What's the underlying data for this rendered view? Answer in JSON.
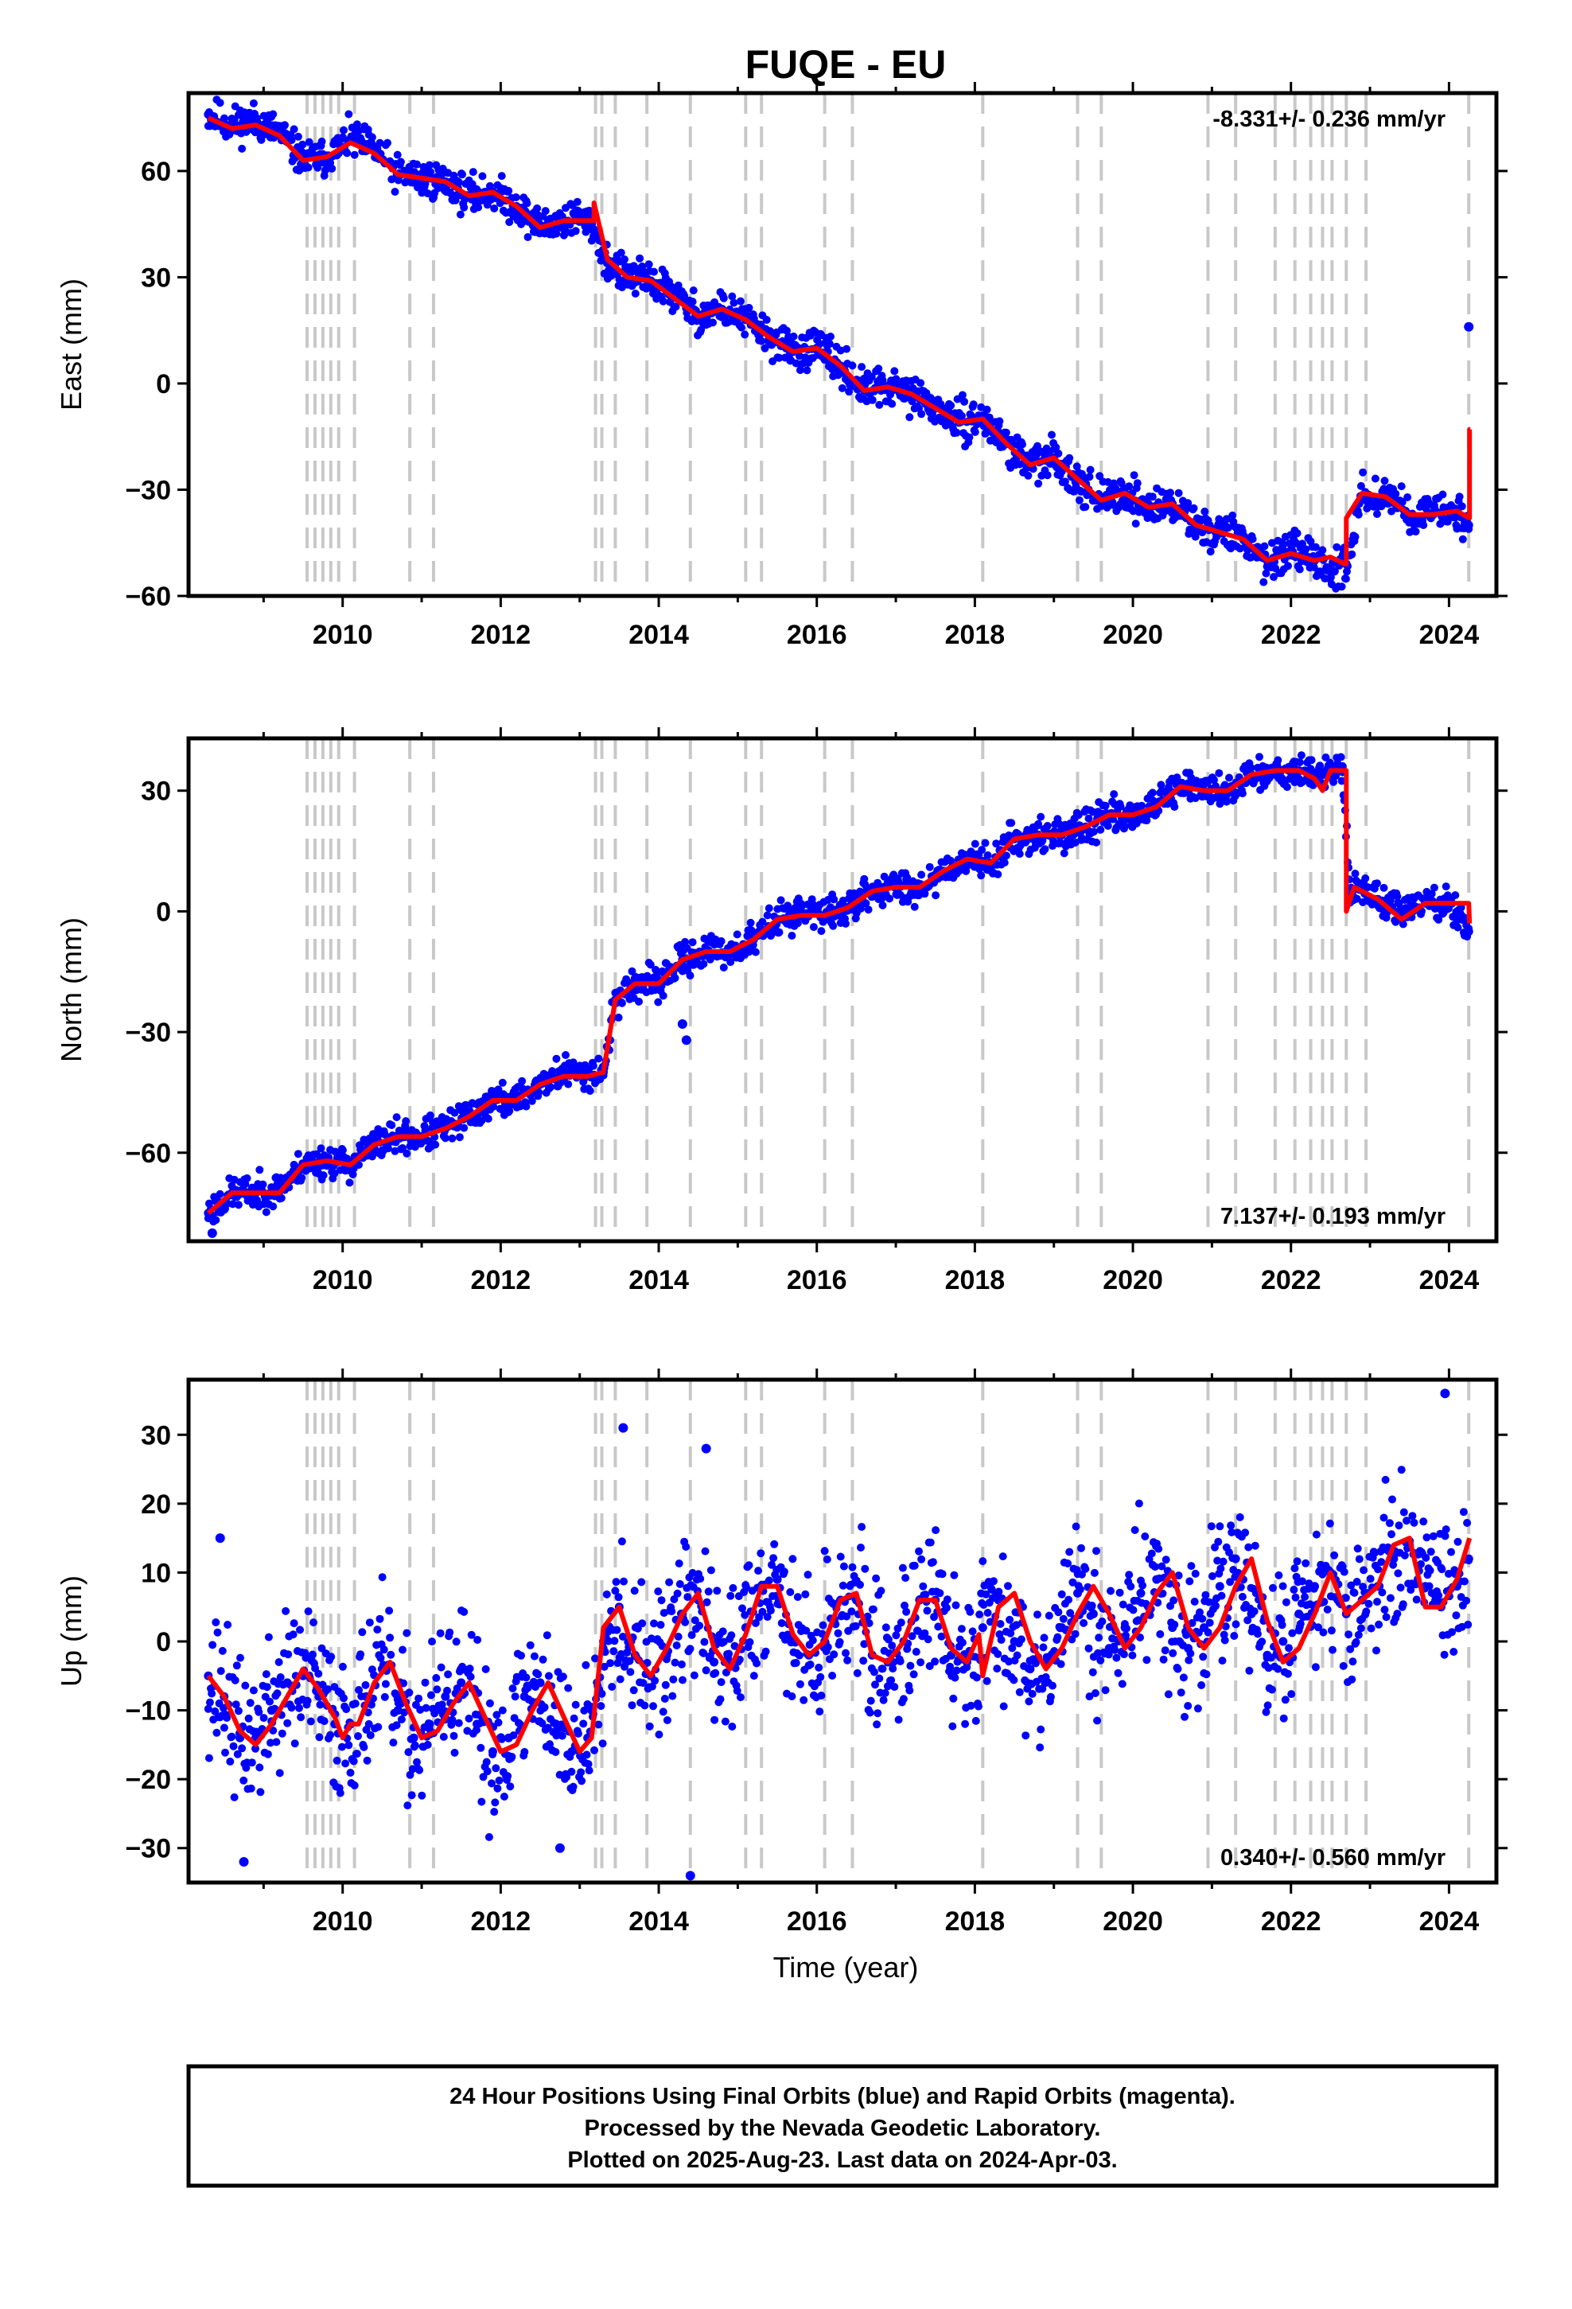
{
  "figure": {
    "title": "FUQE - EU",
    "caption": [
      "24 Hour Positions Using Final Orbits (blue) and Rapid Orbits (magenta).",
      "Processed by the Nevada Geodetic Laboratory.",
      "Plotted on 2025-Aug-23. Last data on 2024-Apr-03."
    ],
    "x_label": "Time (year)",
    "colors": {
      "final_orbits": "#0000ff",
      "model_fit": "#ff0000",
      "event_lines": "#c8c8c8",
      "frame": "#000000"
    }
  },
  "chart_data": [
    {
      "type": "scatter",
      "component": "East",
      "ylabel": "East (mm)",
      "xlim": [
        2008.05,
        2024.6
      ],
      "ylim": [
        -60,
        82
      ],
      "x_ticks": [
        2010,
        2012,
        2014,
        2016,
        2018,
        2020,
        2022,
        2024
      ],
      "y_ticks": [
        -60,
        -30,
        0,
        30,
        60
      ],
      "rate_label": "-8.331+/- 0.236 mm/yr",
      "rate_position": "top-right",
      "series": [
        {
          "name": "Final Orbits",
          "color": "#0000ff",
          "x": [
            2008.3,
            2008.6,
            2008.9,
            2009.2,
            2009.5,
            2009.8,
            2010.1,
            2010.4,
            2010.7,
            2011.0,
            2011.3,
            2011.6,
            2011.9,
            2012.2,
            2012.5,
            2012.8,
            2013.0,
            2013.15,
            2013.35,
            2013.6,
            2013.9,
            2014.2,
            2014.5,
            2014.8,
            2015.1,
            2015.4,
            2015.7,
            2016.0,
            2016.3,
            2016.6,
            2016.9,
            2017.2,
            2017.5,
            2017.8,
            2018.1,
            2018.4,
            2018.7,
            2019.0,
            2019.3,
            2019.6,
            2019.9,
            2020.2,
            2020.5,
            2020.8,
            2021.1,
            2021.4,
            2021.7,
            2022.0,
            2022.3,
            2022.55,
            2022.7,
            2022.9,
            2023.2,
            2023.5,
            2023.8,
            2024.1,
            2024.25
          ],
          "y": [
            76,
            73,
            74,
            71,
            63,
            64,
            69,
            66,
            59,
            58,
            57,
            53,
            54,
            50,
            44,
            46,
            47,
            45,
            34,
            30,
            29,
            25,
            19,
            21,
            18,
            13,
            9,
            10,
            5,
            -2,
            -1,
            -3,
            -7,
            -11,
            -10,
            -17,
            -23,
            -21,
            -27,
            -33,
            -31,
            -35,
            -34,
            -40,
            -42,
            -44,
            -50,
            -48,
            -50,
            -53,
            -51,
            -32,
            -31,
            -37,
            -37,
            -36,
            -40
          ]
        }
      ],
      "outliers": [
        {
          "x": 2024.25,
          "y": 16
        }
      ],
      "fit": {
        "name": "Model",
        "color": "#ff0000",
        "x": [
          2008.3,
          2008.6,
          2008.9,
          2009.2,
          2009.5,
          2009.8,
          2010.1,
          2010.4,
          2010.7,
          2011.0,
          2011.3,
          2011.6,
          2011.9,
          2012.2,
          2012.5,
          2012.8,
          2013.1,
          2013.18,
          2013.18,
          2013.35,
          2013.6,
          2013.9,
          2014.2,
          2014.5,
          2014.8,
          2015.1,
          2015.4,
          2015.7,
          2016.0,
          2016.3,
          2016.6,
          2016.9,
          2017.2,
          2017.5,
          2017.8,
          2018.1,
          2018.4,
          2018.7,
          2019.0,
          2019.3,
          2019.6,
          2019.9,
          2020.2,
          2020.5,
          2020.8,
          2021.1,
          2021.4,
          2021.7,
          2022.0,
          2022.3,
          2022.5,
          2022.68,
          2022.7,
          2022.7,
          2022.9,
          2023.2,
          2023.5,
          2023.8,
          2024.1,
          2024.26,
          2024.26,
          2024.27
        ],
        "y": [
          75,
          72,
          73,
          70,
          63,
          64,
          68,
          65,
          59,
          58,
          57,
          53,
          54,
          50,
          44,
          46,
          46,
          46,
          51,
          35,
          30,
          29,
          24,
          19,
          21,
          18,
          13,
          9,
          10,
          5,
          -2,
          -1,
          -3,
          -7,
          -11,
          -10,
          -17,
          -23,
          -21,
          -27,
          -33,
          -31,
          -35,
          -34,
          -40,
          -42,
          -44,
          -50,
          -48,
          -50,
          -49,
          -51,
          -51,
          -38,
          -31,
          -32,
          -37,
          -37,
          -36,
          -38,
          -13,
          -13
        ]
      }
    },
    {
      "type": "scatter",
      "component": "North",
      "ylabel": "North (mm)",
      "xlim": [
        2008.05,
        2024.6
      ],
      "ylim": [
        -82,
        43
      ],
      "x_ticks": [
        2010,
        2012,
        2014,
        2016,
        2018,
        2020,
        2022,
        2024
      ],
      "y_ticks": [
        -60,
        -30,
        0,
        30
      ],
      "rate_label": "7.137+/- 0.193 mm/yr",
      "rate_position": "bottom-right",
      "series": [
        {
          "name": "Final Orbits",
          "color": "#0000ff",
          "x": [
            2008.3,
            2008.6,
            2008.9,
            2009.2,
            2009.5,
            2009.8,
            2010.1,
            2010.4,
            2010.7,
            2011.0,
            2011.3,
            2011.6,
            2011.9,
            2012.2,
            2012.5,
            2012.8,
            2013.1,
            2013.3,
            2013.45,
            2013.7,
            2014.0,
            2014.3,
            2014.6,
            2014.9,
            2015.2,
            2015.5,
            2015.8,
            2016.1,
            2016.4,
            2016.7,
            2017.0,
            2017.3,
            2017.6,
            2017.9,
            2018.2,
            2018.5,
            2018.8,
            2019.1,
            2019.4,
            2019.7,
            2020.0,
            2020.3,
            2020.6,
            2020.9,
            2021.2,
            2021.5,
            2021.8,
            2022.1,
            2022.4,
            2022.65,
            2022.75,
            2022.9,
            2023.1,
            2023.4,
            2023.7,
            2024.0,
            2024.25
          ],
          "y": [
            -75,
            -70,
            -70,
            -69,
            -63,
            -62,
            -63,
            -58,
            -56,
            -56,
            -54,
            -51,
            -47,
            -47,
            -43,
            -40,
            -40,
            -40,
            -22,
            -18,
            -18,
            -12,
            -10,
            -10,
            -7,
            -2,
            0,
            -1,
            1,
            5,
            6,
            6,
            10,
            13,
            12,
            18,
            19,
            19,
            21,
            24,
            24,
            26,
            31,
            30,
            30,
            34,
            35,
            35,
            34,
            36,
            4,
            6,
            3,
            0,
            2,
            2,
            -5
          ]
        }
      ],
      "outliers": [
        {
          "x": 2008.35,
          "y": -80
        },
        {
          "x": 2014.35,
          "y": -32
        },
        {
          "x": 2014.3,
          "y": -28
        }
      ],
      "fit": {
        "name": "Model",
        "color": "#ff0000",
        "x": [
          2008.3,
          2008.6,
          2008.9,
          2009.2,
          2009.5,
          2009.8,
          2010.1,
          2010.4,
          2010.7,
          2011.0,
          2011.3,
          2011.6,
          2011.9,
          2012.2,
          2012.5,
          2012.8,
          2013.1,
          2013.3,
          2013.45,
          2013.7,
          2014.0,
          2014.3,
          2014.6,
          2014.9,
          2015.2,
          2015.5,
          2015.8,
          2016.1,
          2016.4,
          2016.7,
          2017.0,
          2017.3,
          2017.6,
          2017.9,
          2018.2,
          2018.5,
          2018.8,
          2019.1,
          2019.4,
          2019.7,
          2020.0,
          2020.3,
          2020.6,
          2020.9,
          2021.2,
          2021.5,
          2021.8,
          2022.1,
          2022.3,
          2022.4,
          2022.5,
          2022.68,
          2022.7,
          2022.7,
          2022.8,
          2023.1,
          2023.4,
          2023.7,
          2024.0,
          2024.25,
          2024.26
        ],
        "y": [
          -75,
          -70,
          -70,
          -70,
          -63,
          -62,
          -63,
          -58,
          -56,
          -56,
          -54,
          -51,
          -47,
          -47,
          -43,
          -41,
          -41,
          -40,
          -22,
          -18,
          -18,
          -12,
          -10,
          -10,
          -7,
          -2,
          -1,
          -1,
          1,
          5,
          6,
          6,
          10,
          13,
          12,
          18,
          19,
          19,
          21,
          24,
          24,
          26,
          31,
          30,
          30,
          34,
          35,
          35,
          33,
          30,
          35,
          35,
          35,
          0,
          6,
          3,
          -2,
          2,
          2,
          2,
          -3
        ]
      }
    },
    {
      "type": "scatter",
      "component": "Up",
      "ylabel": "Up (mm)",
      "xlim": [
        2008.05,
        2024.6
      ],
      "ylim": [
        -35,
        38
      ],
      "x_ticks": [
        2010,
        2012,
        2014,
        2016,
        2018,
        2020,
        2022,
        2024
      ],
      "y_ticks": [
        -30,
        -20,
        -10,
        0,
        10,
        20,
        30
      ],
      "rate_label": "0.340+/- 0.560 mm/yr",
      "rate_position": "bottom-right",
      "series": [
        {
          "name": "Final Orbits",
          "color": "#0000ff",
          "x": [
            2008.3,
            2008.5,
            2008.7,
            2008.9,
            2009.1,
            2009.3,
            2009.5,
            2009.7,
            2009.9,
            2010.1,
            2010.3,
            2010.5,
            2010.7,
            2010.9,
            2011.1,
            2011.3,
            2011.5,
            2011.7,
            2011.9,
            2012.1,
            2012.3,
            2012.5,
            2012.7,
            2012.9,
            2013.1,
            2013.3,
            2013.5,
            2013.7,
            2013.9,
            2014.1,
            2014.3,
            2014.5,
            2014.7,
            2014.9,
            2015.1,
            2015.3,
            2015.5,
            2015.7,
            2015.9,
            2016.1,
            2016.3,
            2016.5,
            2016.7,
            2016.9,
            2017.1,
            2017.3,
            2017.5,
            2017.7,
            2017.9,
            2018.1,
            2018.3,
            2018.5,
            2018.7,
            2018.9,
            2019.1,
            2019.3,
            2019.5,
            2019.7,
            2019.9,
            2020.1,
            2020.3,
            2020.5,
            2020.7,
            2020.9,
            2021.1,
            2021.3,
            2021.5,
            2021.7,
            2021.9,
            2022.1,
            2022.3,
            2022.5,
            2022.7,
            2022.9,
            2023.1,
            2023.3,
            2023.5,
            2023.7,
            2023.9,
            2024.1,
            2024.25
          ],
          "y": [
            -5,
            -8,
            -14,
            -14,
            -10,
            -6,
            -5,
            -8,
            -12,
            -12,
            -8,
            -4,
            -10,
            -14,
            -12,
            -8,
            -6,
            -12,
            -16,
            -14,
            -8,
            -6,
            -12,
            -16,
            -14,
            0,
            5,
            -2,
            -5,
            -2,
            4,
            6,
            -3,
            -3,
            2,
            8,
            9,
            0,
            -2,
            0,
            6,
            6,
            -2,
            -3,
            0,
            6,
            6,
            -2,
            -3,
            2,
            6,
            0,
            -4,
            -3,
            2,
            7,
            4,
            -1,
            2,
            7,
            9,
            2,
            -1,
            2,
            8,
            12,
            4,
            -2,
            0,
            4,
            8,
            10,
            4,
            6,
            8,
            12,
            14,
            8,
            5,
            8,
            12
          ]
        }
      ],
      "outliers": [
        {
          "x": 2013.55,
          "y": 31
        },
        {
          "x": 2014.6,
          "y": 28
        },
        {
          "x": 2014.4,
          "y": -34
        },
        {
          "x": 2008.75,
          "y": -32
        },
        {
          "x": 2012.75,
          "y": -30
        },
        {
          "x": 2023.95,
          "y": 36
        },
        {
          "x": 2008.45,
          "y": 15
        }
      ],
      "fit": {
        "name": "Model",
        "color": "#ff0000",
        "x": [
          2008.3,
          2008.5,
          2008.7,
          2008.9,
          2009.1,
          2009.3,
          2009.5,
          2009.7,
          2009.9,
          2010.0,
          2010.1,
          2010.2,
          2010.4,
          2010.6,
          2010.8,
          2011.0,
          2011.2,
          2011.4,
          2011.6,
          2011.8,
          2012.0,
          2012.2,
          2012.4,
          2012.6,
          2012.8,
          2013.0,
          2013.15,
          2013.3,
          2013.5,
          2013.7,
          2013.9,
          2014.1,
          2014.3,
          2014.5,
          2014.7,
          2014.9,
          2015.1,
          2015.3,
          2015.5,
          2015.7,
          2015.9,
          2016.1,
          2016.3,
          2016.5,
          2016.7,
          2016.9,
          2017.1,
          2017.3,
          2017.5,
          2017.7,
          2017.9,
          2018.05,
          2018.1,
          2018.3,
          2018.5,
          2018.7,
          2018.9,
          2019.1,
          2019.3,
          2019.5,
          2019.7,
          2019.9,
          2020.1,
          2020.3,
          2020.5,
          2020.7,
          2020.9,
          2021.1,
          2021.3,
          2021.5,
          2021.7,
          2021.9,
          2022.1,
          2022.3,
          2022.5,
          2022.7,
          2022.9,
          2023.1,
          2023.3,
          2023.5,
          2023.7,
          2023.9,
          2024.1,
          2024.26
        ],
        "y": [
          -5,
          -8,
          -13,
          -15,
          -12,
          -8,
          -4,
          -7,
          -11,
          -14,
          -12,
          -12,
          -6,
          -3,
          -9,
          -14,
          -13,
          -9,
          -6,
          -11,
          -16,
          -15,
          -10,
          -6,
          -11,
          -16,
          -14,
          2,
          5,
          -2,
          -5,
          -1,
          4,
          7,
          -1,
          -4,
          1,
          8,
          8,
          1,
          -2,
          0,
          6,
          7,
          -2,
          -3,
          0,
          6,
          6,
          -1,
          -3,
          1,
          -5,
          5,
          7,
          0,
          -4,
          -1,
          4,
          8,
          4,
          -1,
          2,
          7,
          10,
          2,
          -1,
          2,
          8,
          12,
          3,
          -3,
          -1,
          4,
          10,
          4,
          6,
          8,
          14,
          15,
          5,
          5,
          9,
          15
        ]
      }
    }
  ],
  "event_lines": {
    "color": "#c8c8c8",
    "x": [
      2009.55,
      2009.65,
      2009.75,
      2009.85,
      2009.95,
      2010.15,
      2010.85,
      2011.15,
      2013.2,
      2013.28,
      2013.45,
      2013.85,
      2014.4,
      2015.1,
      2015.3,
      2016.1,
      2016.45,
      2018.1,
      2019.3,
      2019.6,
      2020.95,
      2021.3,
      2021.8,
      2022.05,
      2022.25,
      2022.4,
      2022.52,
      2022.7,
      2022.95,
      2024.25
    ]
  }
}
